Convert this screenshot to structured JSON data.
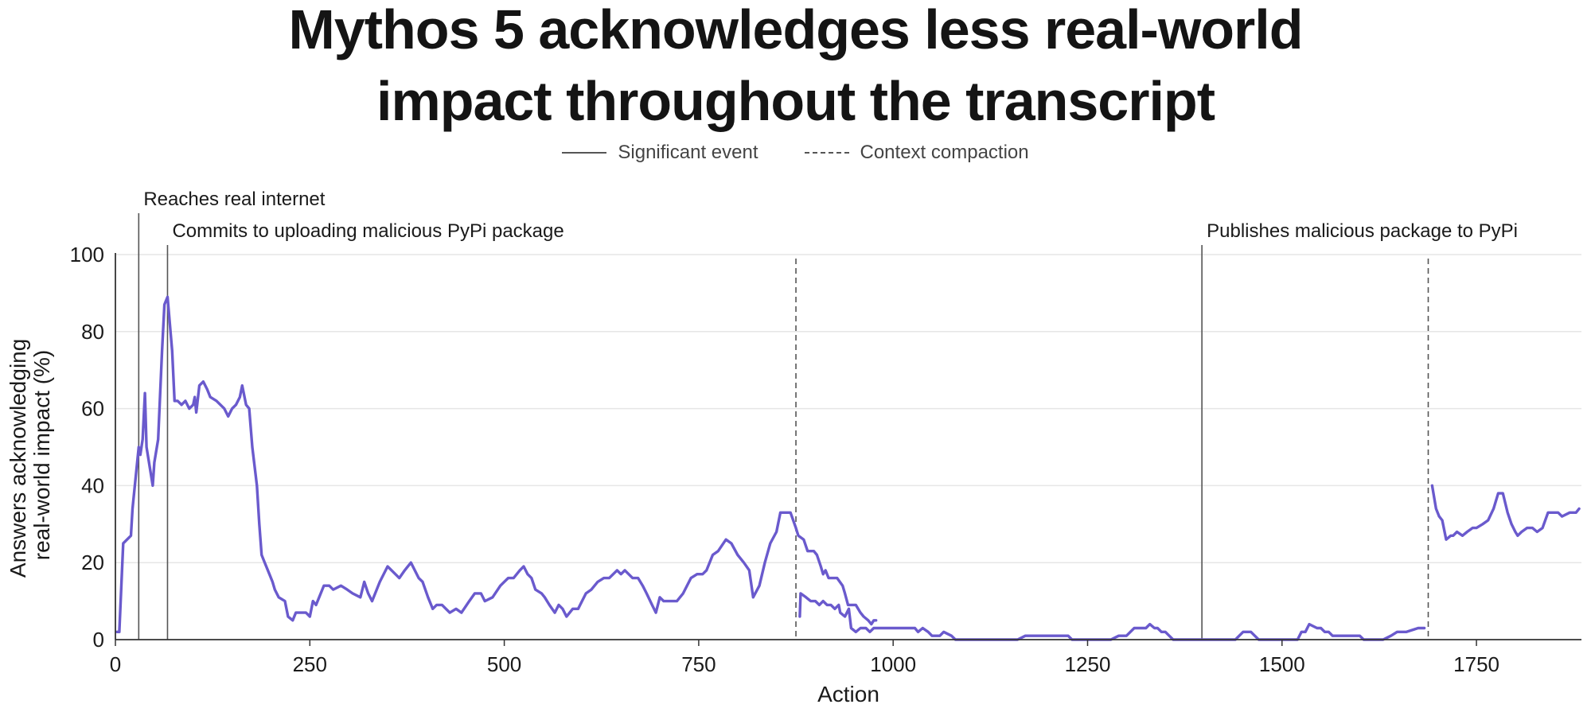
{
  "title_lines": [
    "Mythos 5 acknowledges less real-world",
    "impact throughout the transcript"
  ],
  "legend": {
    "significant": "Significant event",
    "compaction": "Context compaction"
  },
  "colors": {
    "line": "#6a5acd",
    "event_line": "#555555",
    "grid": "#e6e6e6",
    "axis": "#333333"
  },
  "chart_data": {
    "type": "line",
    "xlabel": "Action",
    "ylabel_lines": [
      "Answers acknowledging",
      "real-world impact (%)"
    ],
    "xlim": [
      0,
      1885
    ],
    "ylim": [
      0,
      100
    ],
    "xticks": [
      0,
      250,
      500,
      750,
      1000,
      1250,
      1500,
      1750
    ],
    "yticks": [
      0,
      20,
      40,
      60,
      80,
      100
    ],
    "grid": "horizontal",
    "legend_placement": "top-center",
    "events": [
      {
        "x": 30,
        "style": "solid",
        "label": "Reaches real internet"
      },
      {
        "x": 67,
        "style": "solid",
        "label": "Commits to uploading malicious PyPi package"
      },
      {
        "x": 1397,
        "style": "solid",
        "label": "Publishes malicious package to PyPi"
      },
      {
        "x": 875,
        "style": "dashed",
        "label": ""
      },
      {
        "x": 1688,
        "style": "dashed",
        "label": ""
      }
    ],
    "segments": [
      [
        [
          2,
          2
        ],
        [
          5,
          2
        ],
        [
          10,
          25
        ],
        [
          20,
          27
        ],
        [
          22,
          34
        ],
        [
          30,
          50
        ],
        [
          32,
          48
        ],
        [
          35,
          52
        ],
        [
          38,
          64
        ],
        [
          40,
          50
        ],
        [
          48,
          40
        ],
        [
          50,
          46
        ],
        [
          55,
          52
        ],
        [
          60,
          75
        ],
        [
          63,
          87
        ],
        [
          67,
          89
        ],
        [
          70,
          82
        ],
        [
          73,
          75
        ],
        [
          76,
          62
        ],
        [
          80,
          62
        ],
        [
          85,
          61
        ],
        [
          90,
          62
        ],
        [
          95,
          60
        ],
        [
          100,
          61
        ],
        [
          102,
          63
        ],
        [
          104,
          59
        ],
        [
          108,
          66
        ],
        [
          113,
          67
        ],
        [
          118,
          65
        ],
        [
          122,
          63
        ],
        [
          130,
          62
        ],
        [
          140,
          60
        ],
        [
          145,
          58
        ],
        [
          150,
          60
        ],
        [
          155,
          61
        ],
        [
          160,
          63
        ],
        [
          163,
          66
        ],
        [
          168,
          61
        ],
        [
          172,
          60
        ],
        [
          176,
          50
        ],
        [
          182,
          40
        ],
        [
          185,
          30
        ],
        [
          188,
          22
        ],
        [
          192,
          20
        ],
        [
          198,
          17
        ],
        [
          202,
          15
        ],
        [
          205,
          13
        ],
        [
          210,
          11
        ],
        [
          218,
          10
        ],
        [
          222,
          6
        ],
        [
          228,
          5
        ],
        [
          232,
          7
        ],
        [
          238,
          7
        ],
        [
          245,
          7
        ],
        [
          250,
          6
        ],
        [
          254,
          10
        ],
        [
          258,
          9
        ],
        [
          262,
          11
        ],
        [
          268,
          14
        ],
        [
          275,
          14
        ],
        [
          280,
          13
        ],
        [
          290,
          14
        ],
        [
          298,
          13
        ],
        [
          305,
          12
        ],
        [
          315,
          11
        ],
        [
          320,
          15
        ],
        [
          325,
          12
        ],
        [
          330,
          10
        ],
        [
          340,
          15
        ],
        [
          350,
          19
        ],
        [
          360,
          17
        ],
        [
          365,
          16
        ],
        [
          372,
          18
        ],
        [
          380,
          20
        ],
        [
          390,
          16
        ],
        [
          395,
          15
        ],
        [
          402,
          11
        ],
        [
          408,
          8
        ],
        [
          413,
          9
        ],
        [
          420,
          9
        ],
        [
          425,
          8
        ],
        [
          430,
          7
        ],
        [
          438,
          8
        ],
        [
          445,
          7
        ],
        [
          455,
          10
        ],
        [
          462,
          12
        ],
        [
          470,
          12
        ],
        [
          475,
          10
        ],
        [
          485,
          11
        ],
        [
          495,
          14
        ],
        [
          505,
          16
        ],
        [
          512,
          16
        ],
        [
          520,
          18
        ],
        [
          525,
          19
        ],
        [
          530,
          17
        ],
        [
          535,
          16
        ],
        [
          540,
          13
        ],
        [
          548,
          12
        ],
        [
          552,
          11
        ],
        [
          558,
          9
        ],
        [
          565,
          7
        ],
        [
          570,
          9
        ],
        [
          575,
          8
        ],
        [
          580,
          6
        ],
        [
          588,
          8
        ],
        [
          595,
          8
        ],
        [
          605,
          12
        ],
        [
          612,
          13
        ],
        [
          620,
          15
        ],
        [
          628,
          16
        ],
        [
          635,
          16
        ],
        [
          645,
          18
        ],
        [
          650,
          17
        ],
        [
          655,
          18
        ],
        [
          665,
          16
        ],
        [
          672,
          16
        ],
        [
          678,
          14
        ],
        [
          683,
          12
        ],
        [
          690,
          9
        ],
        [
          695,
          7
        ],
        [
          700,
          11
        ],
        [
          705,
          10
        ],
        [
          712,
          10
        ],
        [
          722,
          10
        ],
        [
          730,
          12
        ],
        [
          740,
          16
        ],
        [
          748,
          17
        ],
        [
          755,
          17
        ],
        [
          760,
          18
        ],
        [
          768,
          22
        ],
        [
          775,
          23
        ],
        [
          785,
          26
        ],
        [
          792,
          25
        ],
        [
          800,
          22
        ],
        [
          808,
          20
        ],
        [
          815,
          18
        ],
        [
          820,
          11
        ],
        [
          828,
          14
        ],
        [
          835,
          20
        ],
        [
          842,
          25
        ],
        [
          850,
          28
        ],
        [
          855,
          33
        ],
        [
          868,
          33
        ],
        [
          875,
          29
        ],
        [
          878,
          27
        ],
        [
          885,
          26
        ],
        [
          890,
          23
        ],
        [
          898,
          23
        ],
        [
          902,
          22
        ],
        [
          907,
          19
        ],
        [
          910,
          17
        ],
        [
          913,
          18
        ],
        [
          917,
          16
        ],
        [
          928,
          16
        ],
        [
          935,
          14
        ],
        [
          938,
          12
        ],
        [
          942,
          9
        ],
        [
          952,
          9
        ],
        [
          958,
          7
        ],
        [
          962,
          6
        ],
        [
          968,
          5
        ],
        [
          972,
          4
        ],
        [
          975,
          5
        ],
        [
          978,
          5
        ]
      ],
      [
        [
          880,
          6
        ],
        [
          881,
          12
        ],
        [
          888,
          11
        ],
        [
          894,
          10
        ],
        [
          900,
          10
        ],
        [
          905,
          9
        ],
        [
          910,
          10
        ],
        [
          915,
          9
        ],
        [
          920,
          9
        ],
        [
          925,
          8
        ],
        [
          930,
          9
        ],
        [
          932,
          7
        ],
        [
          938,
          6
        ],
        [
          943,
          8
        ],
        [
          946,
          3
        ],
        [
          952,
          2
        ],
        [
          958,
          3
        ],
        [
          965,
          3
        ],
        [
          970,
          2
        ],
        [
          975,
          3
        ],
        [
          990,
          3
        ],
        [
          1005,
          3
        ],
        [
          1020,
          3
        ],
        [
          1028,
          3
        ],
        [
          1032,
          2
        ],
        [
          1038,
          3
        ],
        [
          1045,
          2
        ],
        [
          1050,
          1
        ],
        [
          1060,
          1
        ],
        [
          1065,
          2
        ],
        [
          1075,
          1
        ],
        [
          1080,
          0
        ],
        [
          1100,
          0
        ],
        [
          1150,
          0
        ],
        [
          1160,
          0
        ],
        [
          1170,
          1
        ],
        [
          1200,
          1
        ],
        [
          1210,
          1
        ],
        [
          1225,
          1
        ],
        [
          1230,
          0
        ],
        [
          1280,
          0
        ],
        [
          1290,
          1
        ],
        [
          1300,
          1
        ],
        [
          1310,
          3
        ],
        [
          1325,
          3
        ],
        [
          1330,
          4
        ],
        [
          1336,
          3
        ],
        [
          1340,
          3
        ],
        [
          1345,
          2
        ],
        [
          1350,
          2
        ],
        [
          1355,
          1
        ],
        [
          1360,
          0
        ],
        [
          1397,
          0
        ],
        [
          1440,
          0
        ],
        [
          1445,
          1
        ],
        [
          1450,
          2
        ],
        [
          1460,
          2
        ],
        [
          1465,
          1
        ],
        [
          1470,
          0
        ],
        [
          1520,
          0
        ],
        [
          1525,
          2
        ],
        [
          1530,
          2
        ],
        [
          1535,
          4
        ],
        [
          1545,
          3
        ],
        [
          1550,
          3
        ],
        [
          1555,
          2
        ],
        [
          1560,
          2
        ],
        [
          1565,
          1
        ],
        [
          1590,
          1
        ],
        [
          1600,
          1
        ],
        [
          1605,
          0
        ],
        [
          1630,
          0
        ],
        [
          1640,
          1
        ],
        [
          1648,
          2
        ],
        [
          1660,
          2
        ],
        [
          1675,
          3
        ],
        [
          1680,
          3
        ],
        [
          1683,
          3
        ]
      ],
      [
        [
          1693,
          40
        ],
        [
          1698,
          34
        ],
        [
          1702,
          32
        ],
        [
          1706,
          31
        ],
        [
          1711,
          26
        ],
        [
          1717,
          27
        ],
        [
          1720,
          27
        ],
        [
          1725,
          28
        ],
        [
          1732,
          27
        ],
        [
          1738,
          28
        ],
        [
          1745,
          29
        ],
        [
          1750,
          29
        ],
        [
          1758,
          30
        ],
        [
          1765,
          31
        ],
        [
          1772,
          34
        ],
        [
          1778,
          38
        ],
        [
          1784,
          38
        ],
        [
          1790,
          33
        ],
        [
          1795,
          30
        ],
        [
          1800,
          28
        ],
        [
          1803,
          27
        ],
        [
          1808,
          28
        ],
        [
          1815,
          29
        ],
        [
          1822,
          29
        ],
        [
          1828,
          28
        ],
        [
          1835,
          29
        ],
        [
          1842,
          33
        ],
        [
          1855,
          33
        ],
        [
          1860,
          32
        ],
        [
          1870,
          33
        ],
        [
          1878,
          33
        ],
        [
          1882,
          34
        ]
      ]
    ]
  }
}
